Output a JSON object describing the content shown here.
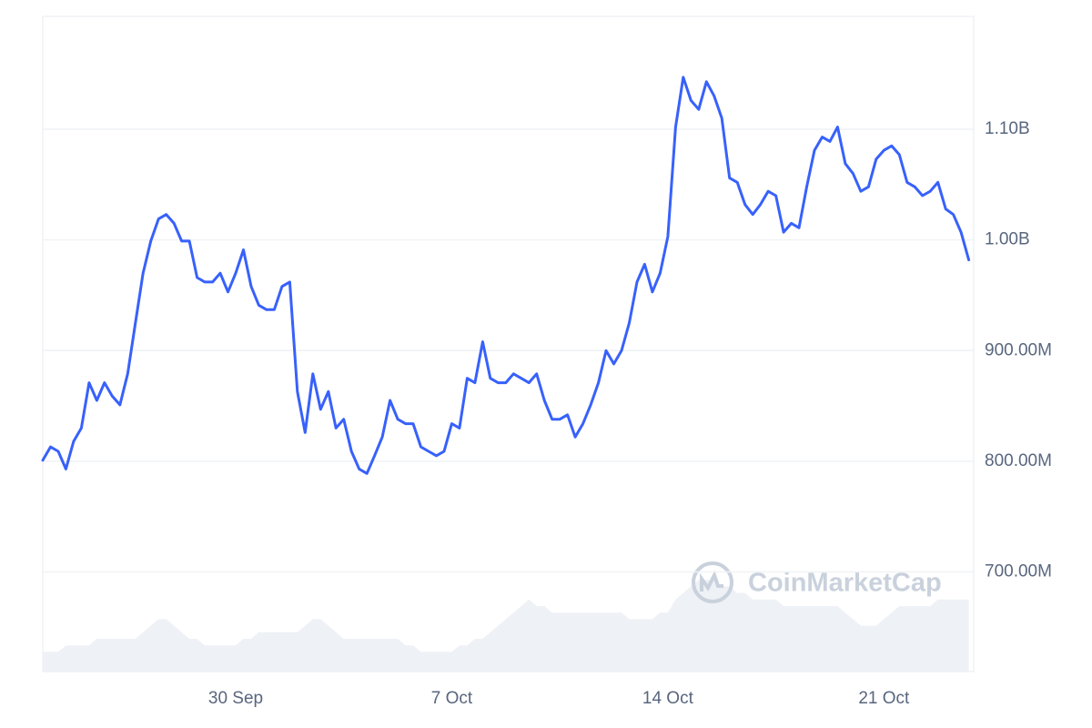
{
  "chart_data": {
    "type": "line",
    "color": "#3861fb",
    "categories": [
      null,
      null,
      null,
      null,
      null,
      null,
      null,
      null,
      null,
      null,
      null,
      null,
      null,
      null,
      null,
      null,
      null,
      null,
      null,
      null,
      null,
      null,
      null,
      null,
      null,
      "30 Sep",
      null,
      null,
      null,
      null,
      null,
      null,
      null,
      null,
      null,
      null,
      null,
      null,
      null,
      null,
      null,
      null,
      null,
      null,
      null,
      null,
      null,
      null,
      null,
      null,
      null,
      null,
      null,
      "7 Oct",
      null,
      null,
      null,
      null,
      null,
      null,
      null,
      null,
      null,
      null,
      null,
      null,
      null,
      null,
      null,
      null,
      null,
      null,
      null,
      null,
      null,
      null,
      null,
      null,
      null,
      null,
      null,
      "14 Oct",
      null,
      null,
      null,
      null,
      null,
      null,
      null,
      null,
      null,
      null,
      null,
      null,
      null,
      null,
      null,
      null,
      null,
      null,
      null,
      null,
      null,
      null,
      null,
      null,
      null,
      null,
      null,
      "21 Oct",
      null,
      null,
      null,
      null,
      null,
      null,
      null,
      null,
      null,
      null,
      null
    ],
    "values": [
      801000000.0,
      813000000.0,
      809000000.0,
      793000000.0,
      818000000.0,
      830000000.0,
      871000000.0,
      855000000.0,
      871000000.0,
      859000000.0,
      851000000.0,
      879000000.0,
      925000000.0,
      970000000.0,
      999000000.0,
      1019000000.0,
      1023000000.0,
      1015000000.0,
      999000000.0,
      999000000.0,
      966000000.0,
      962000000.0,
      962000000.0,
      970000000.0,
      953000000.0,
      970000000.0,
      991000000.0,
      958000000.0,
      941000000.0,
      937000000.0,
      937000000.0,
      958000000.0,
      962000000.0,
      863000000.0,
      826000000.0,
      879000000.0,
      847000000.0,
      863000000.0,
      830000000.0,
      838000000.0,
      809000000.0,
      793000000.0,
      789000000.0,
      805000000.0,
      822000000.0,
      855000000.0,
      838000000.0,
      834000000.0,
      834000000.0,
      813000000.0,
      809000000.0,
      805000000.0,
      809000000.0,
      834000000.0,
      830000000.0,
      875000000.0,
      871000000.0,
      908000000.0,
      875000000.0,
      871000000.0,
      871000000.0,
      879000000.0,
      875000000.0,
      871000000.0,
      879000000.0,
      855000000.0,
      838000000.0,
      838000000.0,
      842000000.0,
      822000000.0,
      834000000.0,
      851000000.0,
      871000000.0,
      900000000.0,
      888000000.0,
      900000000.0,
      925000000.0,
      962000000.0,
      978000000.0,
      953000000.0,
      970000000.0,
      1003000000.0,
      1102000000.0,
      1147000000.0,
      1126000000.0,
      1118000000.0,
      1143000000.0,
      1130000000.0,
      1110000000.0,
      1056000000.0,
      1052000000.0,
      1032000000.0,
      1023000000.0,
      1032000000.0,
      1044000000.0,
      1040000000.0,
      1007000000.0,
      1015000000.0,
      1011000000.0,
      1048000000.0,
      1081000000.0,
      1093000000.0,
      1089000000.0,
      1102000000.0,
      1069000000.0,
      1060000000.0,
      1044000000.0,
      1048000000.0,
      1073000000.0,
      1081000000.0,
      1085000000.0,
      1077000000.0,
      1052000000.0,
      1048000000.0,
      1040000000.0,
      1044000000.0,
      1052000000.0,
      1028000000.0,
      1023000000.0,
      1007000000.0,
      982000000.0
    ],
    "volume": {
      "axis": "y2",
      "color": "#eef1f5",
      "values": [
        3,
        3,
        3,
        4,
        4,
        4,
        4,
        5,
        5,
        5,
        5,
        5,
        5,
        6,
        7,
        8,
        8,
        7,
        6,
        5,
        5,
        4,
        4,
        4,
        4,
        4,
        5,
        5,
        6,
        6,
        6,
        6,
        6,
        6,
        7,
        8,
        8,
        7,
        6,
        5,
        5,
        5,
        5,
        5,
        5,
        5,
        5,
        4,
        4,
        3,
        3,
        3,
        3,
        3,
        4,
        4,
        5,
        5,
        6,
        7,
        8,
        9,
        10,
        11,
        10,
        10,
        9,
        9,
        9,
        9,
        9,
        9,
        9,
        9,
        9,
        9,
        8,
        8,
        8,
        8,
        9,
        9,
        11,
        12,
        13,
        14,
        14,
        14,
        13,
        13,
        12,
        12,
        11,
        11,
        11,
        11,
        10,
        10,
        10,
        10,
        10,
        10,
        10,
        10,
        9,
        8,
        7,
        7,
        7,
        8,
        9,
        10,
        10,
        10,
        10,
        10,
        11,
        11,
        11,
        11,
        11
      ]
    },
    "ylim": [
      610000000.0,
      1202000000.0
    ],
    "yticks": [
      {
        "value": 700000000.0,
        "label": "700.00M"
      },
      {
        "value": 800000000.0,
        "label": "800.00M"
      },
      {
        "value": 900000000.0,
        "label": "900.00M"
      },
      {
        "value": 1000000000.0,
        "label": "1.00B"
      },
      {
        "value": 1100000000.0,
        "label": "1.10B"
      }
    ],
    "y2lim": [
      0,
      100
    ],
    "grid": true,
    "watermark": "CoinMarketCap"
  }
}
